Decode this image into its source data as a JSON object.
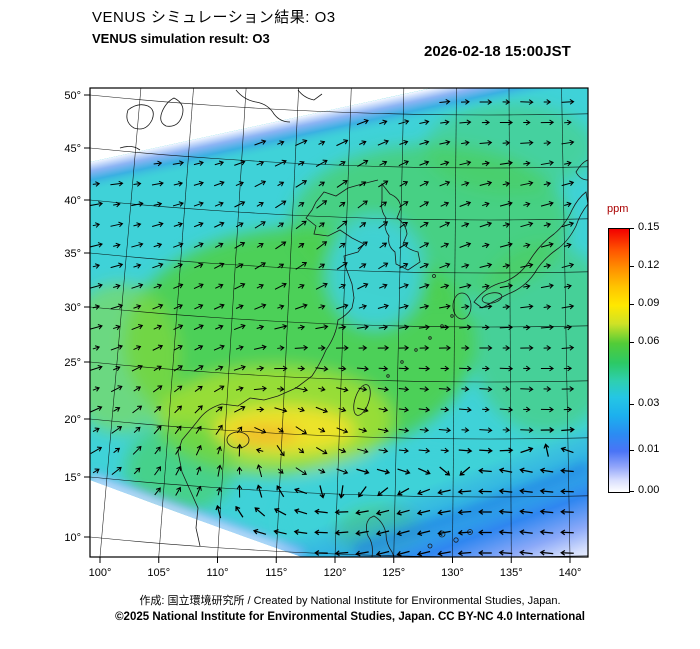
{
  "header": {
    "title_ja": "VENUS シミュレーション結果: O3",
    "subtitle_en": "VENUS simulation result: O3",
    "timestamp": "2026-02-18 15:00JST"
  },
  "footer": {
    "credit_line": "作成: 国立環境研究所 / Created by National Institute for Environmental Studies, Japan.",
    "license_line": "©2025 National Institute for Environmental Studies, Japan. CC BY-NC 4.0 International"
  },
  "chart_data": {
    "type": "heatmap",
    "variable": "O3 concentration",
    "unit": "ppm",
    "title": "VENUS simulation result: O3",
    "timestamp": "2026-02-18 15:00JST",
    "region": "East Asia (about 100E-140E, 10N-50N), conformal projection with rotated model domain band",
    "x_axis": {
      "label": "longitude",
      "ticks": [
        "100°",
        "105°",
        "110°",
        "115°",
        "120°",
        "125°",
        "130°",
        "135°",
        "140°"
      ]
    },
    "y_axis": {
      "label": "latitude",
      "ticks": [
        "50°",
        "45°",
        "40°",
        "35°",
        "30°",
        "25°",
        "20°",
        "15°",
        "10°"
      ]
    },
    "colorbar": {
      "label": "ppm",
      "label_color": "#aa0000",
      "ticks": [
        {
          "value": "0.15",
          "pos": 0.0
        },
        {
          "value": "0.12",
          "pos": 0.145
        },
        {
          "value": "0.09",
          "pos": 0.29
        },
        {
          "value": "0.06",
          "pos": 0.435
        },
        {
          "value": "0.03",
          "pos": 0.67
        },
        {
          "value": "0.01",
          "pos": 0.845
        },
        {
          "value": "0.00",
          "pos": 1.0
        }
      ],
      "colors_top_to_bottom": [
        "#f20000",
        "#ff8c00",
        "#ffe800",
        "#52cc38",
        "#2ecfb2",
        "#25c6e4",
        "#2b8cf2",
        "#4a74f6",
        "#d8defe",
        "#ffffff"
      ]
    },
    "field_summary": {
      "seas_background_ppm": "0.03-0.05 (cyan)",
      "continental_east_asia_korea_japan_ppm": "0.05-0.07 (green)",
      "southern_china_maximum_ppm": "0.08-0.11 (yellow-orange band near 108-120E, 20-25N)",
      "northwest_domain_edge_ppm": "0.00-0.02 (white-blue strip along upper-left domain boundary)",
      "southeast_corner_ppm": "0.00-0.02 (blue fading to white toward lower-right corner)",
      "max_ppm_approx": 0.11,
      "min_ppm_approx": 0.0
    },
    "vectors": "black wind arrows on a regular grid: easterly-to-northeasterly flow over the north and centre, clockwise circulation around the southern-China O3 maximum, strong westward-pointing arrow band across the southeast corner"
  }
}
